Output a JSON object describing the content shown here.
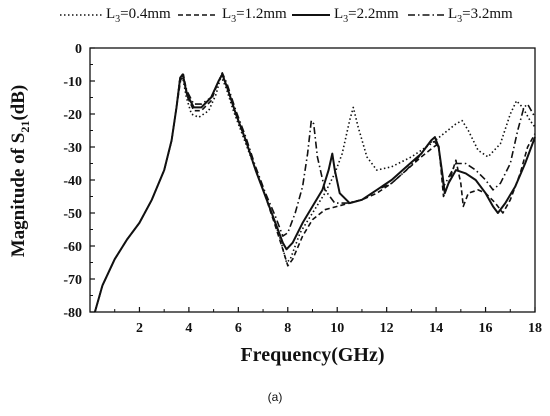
{
  "chart_data": {
    "type": "line",
    "xlabel": "Frequency(GHz)",
    "ylabel": {
      "main": "Magnitude of S",
      "sub": "21",
      "unit": "(dB)"
    },
    "xlim": [
      0,
      18
    ],
    "ylim": [
      -80,
      0
    ],
    "xticks": [
      2,
      4,
      6,
      8,
      10,
      12,
      14,
      16,
      18
    ],
    "yticks": [
      0,
      -10,
      -20,
      -30,
      -40,
      -50,
      -60,
      -70,
      -80
    ],
    "grid": false,
    "legend_position": "top",
    "series": [
      {
        "name": "L3=0.4mm",
        "legend": {
          "pre": "L",
          "sub": "3",
          "post": "=0.4mm"
        },
        "style": "dotted",
        "points": [
          [
            0.2,
            -80
          ],
          [
            0.5,
            -72
          ],
          [
            1,
            -64
          ],
          [
            1.5,
            -58
          ],
          [
            2,
            -53
          ],
          [
            2.5,
            -46
          ],
          [
            3,
            -37
          ],
          [
            3.3,
            -28
          ],
          [
            3.5,
            -18
          ],
          [
            3.62,
            -10
          ],
          [
            3.75,
            -9
          ],
          [
            3.9,
            -15
          ],
          [
            4.1,
            -20
          ],
          [
            4.4,
            -21
          ],
          [
            4.8,
            -19
          ],
          [
            5.1,
            -14
          ],
          [
            5.3,
            -8.5
          ],
          [
            5.5,
            -12
          ],
          [
            5.8,
            -19
          ],
          [
            6.2,
            -27
          ],
          [
            6.6,
            -35
          ],
          [
            7.0,
            -43
          ],
          [
            7.4,
            -51
          ],
          [
            7.7,
            -58
          ],
          [
            7.95,
            -65
          ],
          [
            8.1,
            -64
          ],
          [
            8.5,
            -56
          ],
          [
            9.0,
            -50
          ],
          [
            9.5,
            -44
          ],
          [
            9.9,
            -38
          ],
          [
            10.2,
            -32
          ],
          [
            10.5,
            -22
          ],
          [
            10.65,
            -18
          ],
          [
            10.85,
            -24
          ],
          [
            11.2,
            -33
          ],
          [
            11.6,
            -37
          ],
          [
            12.2,
            -36
          ],
          [
            13.0,
            -33
          ],
          [
            13.8,
            -29
          ],
          [
            14.3,
            -26
          ],
          [
            14.8,
            -23
          ],
          [
            15.05,
            -22
          ],
          [
            15.3,
            -25
          ],
          [
            15.7,
            -31
          ],
          [
            16.1,
            -33
          ],
          [
            16.6,
            -29
          ],
          [
            17.0,
            -20
          ],
          [
            17.25,
            -16
          ],
          [
            17.5,
            -18
          ],
          [
            17.8,
            -22
          ],
          [
            18,
            -24
          ]
        ]
      },
      {
        "name": "L3=1.2mm",
        "legend": {
          "pre": "L",
          "sub": "3",
          "post": "=1.2mm"
        },
        "style": "dashed",
        "points": [
          [
            0.2,
            -80
          ],
          [
            0.5,
            -72
          ],
          [
            1,
            -64
          ],
          [
            1.5,
            -58
          ],
          [
            2,
            -53
          ],
          [
            2.5,
            -46
          ],
          [
            3,
            -37
          ],
          [
            3.3,
            -28
          ],
          [
            3.5,
            -18
          ],
          [
            3.68,
            -9
          ],
          [
            3.78,
            -8
          ],
          [
            3.95,
            -15
          ],
          [
            4.2,
            -19
          ],
          [
            4.5,
            -19
          ],
          [
            4.9,
            -16
          ],
          [
            5.2,
            -10
          ],
          [
            5.35,
            -8
          ],
          [
            5.55,
            -12
          ],
          [
            5.9,
            -20
          ],
          [
            6.3,
            -28
          ],
          [
            6.7,
            -37
          ],
          [
            7.1,
            -45
          ],
          [
            7.5,
            -54
          ],
          [
            7.8,
            -61
          ],
          [
            8.0,
            -66
          ],
          [
            8.2,
            -64
          ],
          [
            8.6,
            -57
          ],
          [
            9.0,
            -52
          ],
          [
            9.5,
            -49
          ],
          [
            10.0,
            -48
          ],
          [
            10.5,
            -47
          ],
          [
            11.0,
            -46
          ],
          [
            11.6,
            -44
          ],
          [
            12.2,
            -41
          ],
          [
            12.8,
            -37
          ],
          [
            13.4,
            -33
          ],
          [
            13.9,
            -30
          ],
          [
            14.1,
            -29
          ],
          [
            14.2,
            -37
          ],
          [
            14.3,
            -45
          ],
          [
            14.5,
            -41
          ],
          [
            14.8,
            -34
          ],
          [
            15.0,
            -41
          ],
          [
            15.1,
            -48
          ],
          [
            15.3,
            -44
          ],
          [
            15.7,
            -43
          ],
          [
            16.0,
            -44
          ],
          [
            16.4,
            -47
          ],
          [
            16.7,
            -50
          ],
          [
            17.0,
            -46
          ],
          [
            17.4,
            -38
          ],
          [
            17.7,
            -30
          ],
          [
            18,
            -26
          ]
        ]
      },
      {
        "name": "L3=2.2mm",
        "legend": {
          "pre": "L",
          "sub": "3",
          "post": "=2.2mm"
        },
        "style": "solid",
        "points": [
          [
            0.2,
            -80
          ],
          [
            0.5,
            -72
          ],
          [
            1,
            -64
          ],
          [
            1.5,
            -58
          ],
          [
            2,
            -53
          ],
          [
            2.5,
            -46
          ],
          [
            3,
            -37
          ],
          [
            3.3,
            -28
          ],
          [
            3.5,
            -18
          ],
          [
            3.65,
            -9
          ],
          [
            3.75,
            -8
          ],
          [
            3.92,
            -14
          ],
          [
            4.2,
            -18
          ],
          [
            4.5,
            -18
          ],
          [
            4.9,
            -15
          ],
          [
            5.2,
            -10
          ],
          [
            5.35,
            -8
          ],
          [
            5.55,
            -12
          ],
          [
            5.9,
            -20
          ],
          [
            6.3,
            -28
          ],
          [
            6.7,
            -37
          ],
          [
            7.1,
            -45
          ],
          [
            7.5,
            -53
          ],
          [
            7.8,
            -59
          ],
          [
            7.95,
            -61
          ],
          [
            8.2,
            -59
          ],
          [
            8.6,
            -53
          ],
          [
            9.0,
            -48
          ],
          [
            9.4,
            -43
          ],
          [
            9.65,
            -37
          ],
          [
            9.8,
            -32
          ],
          [
            9.9,
            -37
          ],
          [
            10.1,
            -44
          ],
          [
            10.5,
            -47
          ],
          [
            11.0,
            -46
          ],
          [
            11.6,
            -43
          ],
          [
            12.2,
            -40
          ],
          [
            12.8,
            -36
          ],
          [
            13.4,
            -32
          ],
          [
            13.8,
            -28
          ],
          [
            13.95,
            -27
          ],
          [
            14.1,
            -30
          ],
          [
            14.25,
            -38
          ],
          [
            14.35,
            -44
          ],
          [
            14.5,
            -41
          ],
          [
            14.8,
            -37
          ],
          [
            15.2,
            -38
          ],
          [
            15.6,
            -40
          ],
          [
            16.0,
            -44
          ],
          [
            16.3,
            -48
          ],
          [
            16.5,
            -50
          ],
          [
            16.8,
            -47
          ],
          [
            17.2,
            -42
          ],
          [
            17.6,
            -35
          ],
          [
            18,
            -27
          ]
        ]
      },
      {
        "name": "L3=3.2mm",
        "legend": {
          "pre": "L",
          "sub": "3",
          "post": "=3.2mm"
        },
        "style": "dashdot",
        "points": [
          [
            0.2,
            -80
          ],
          [
            0.5,
            -72
          ],
          [
            1,
            -64
          ],
          [
            1.5,
            -58
          ],
          [
            2,
            -53
          ],
          [
            2.5,
            -46
          ],
          [
            3,
            -37
          ],
          [
            3.3,
            -28
          ],
          [
            3.5,
            -18
          ],
          [
            3.65,
            -9
          ],
          [
            3.75,
            -8
          ],
          [
            3.92,
            -13
          ],
          [
            4.2,
            -17
          ],
          [
            4.5,
            -17
          ],
          [
            4.9,
            -15
          ],
          [
            5.2,
            -10
          ],
          [
            5.35,
            -7.5
          ],
          [
            5.55,
            -11
          ],
          [
            5.9,
            -19
          ],
          [
            6.3,
            -27
          ],
          [
            6.7,
            -36
          ],
          [
            7.1,
            -44
          ],
          [
            7.5,
            -51
          ],
          [
            7.8,
            -57
          ],
          [
            8.0,
            -56
          ],
          [
            8.3,
            -50
          ],
          [
            8.6,
            -42
          ],
          [
            8.8,
            -32
          ],
          [
            8.95,
            -22
          ],
          [
            9.05,
            -23
          ],
          [
            9.2,
            -33
          ],
          [
            9.5,
            -43
          ],
          [
            9.9,
            -47
          ],
          [
            10.4,
            -47
          ],
          [
            11.0,
            -46
          ],
          [
            11.6,
            -43
          ],
          [
            12.2,
            -41
          ],
          [
            12.8,
            -37
          ],
          [
            13.3,
            -33
          ],
          [
            13.7,
            -29
          ],
          [
            13.9,
            -28
          ],
          [
            14.1,
            -30
          ],
          [
            14.2,
            -36
          ],
          [
            14.3,
            -42
          ],
          [
            14.45,
            -40
          ],
          [
            14.8,
            -35
          ],
          [
            15.2,
            -35
          ],
          [
            15.6,
            -37
          ],
          [
            16.0,
            -40
          ],
          [
            16.3,
            -43
          ],
          [
            16.6,
            -41
          ],
          [
            17.0,
            -35
          ],
          [
            17.3,
            -25
          ],
          [
            17.55,
            -18
          ],
          [
            17.7,
            -17
          ],
          [
            17.85,
            -19
          ],
          [
            18,
            -21
          ]
        ]
      }
    ]
  },
  "caption": "(a)"
}
